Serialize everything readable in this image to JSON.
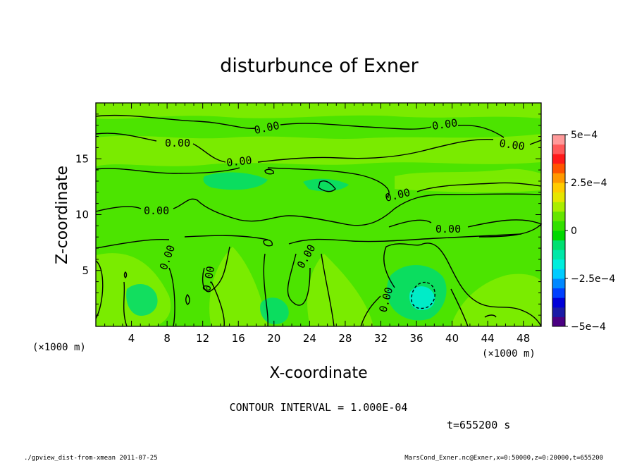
{
  "chart_data": {
    "type": "heatmap",
    "title": "disturbunce of Exner",
    "xlabel": "X-coordinate",
    "ylabel": "Z-coordinate",
    "x_unit": "(×1000 m)",
    "y_unit": "(×1000 m)",
    "xlim": [
      0,
      50
    ],
    "ylim": [
      0,
      20
    ],
    "x_ticks": [
      "4",
      "8",
      "12",
      "16",
      "20",
      "24",
      "28",
      "32",
      "36",
      "40",
      "44",
      "48"
    ],
    "y_ticks": [
      "5",
      "10",
      "15"
    ],
    "colorbar": {
      "range": [
        -0.0005,
        0.0005
      ],
      "tick_labels": [
        "5e−4",
        "2.5e−4",
        "0",
        "−2.5e−4",
        "−5e−4"
      ],
      "colors": [
        "#4b0082",
        "#1a1aa6",
        "#0000d8",
        "#0040ff",
        "#0088ff",
        "#00ccff",
        "#00eedd",
        "#00e8a8",
        "#00e070",
        "#00d800",
        "#33e000",
        "#66e600",
        "#aaee00",
        "#e6e600",
        "#ffcc00",
        "#ff9900",
        "#ff5500",
        "#ff1a1a",
        "#ff5a5a",
        "#ff9a9a"
      ]
    },
    "background_color": "#4ce400",
    "contour_label": "0.00",
    "contour_interval_text": "CONTOUR INTERVAL = 1.000E-04",
    "time_text": "t=655200 s"
  },
  "footer": {
    "left": "./gpview_dist-from-xmean  2011-07-25",
    "right": "MarsCond_Exner.nc@Exner,x=0:50000,z=0:20000,t=655200"
  }
}
